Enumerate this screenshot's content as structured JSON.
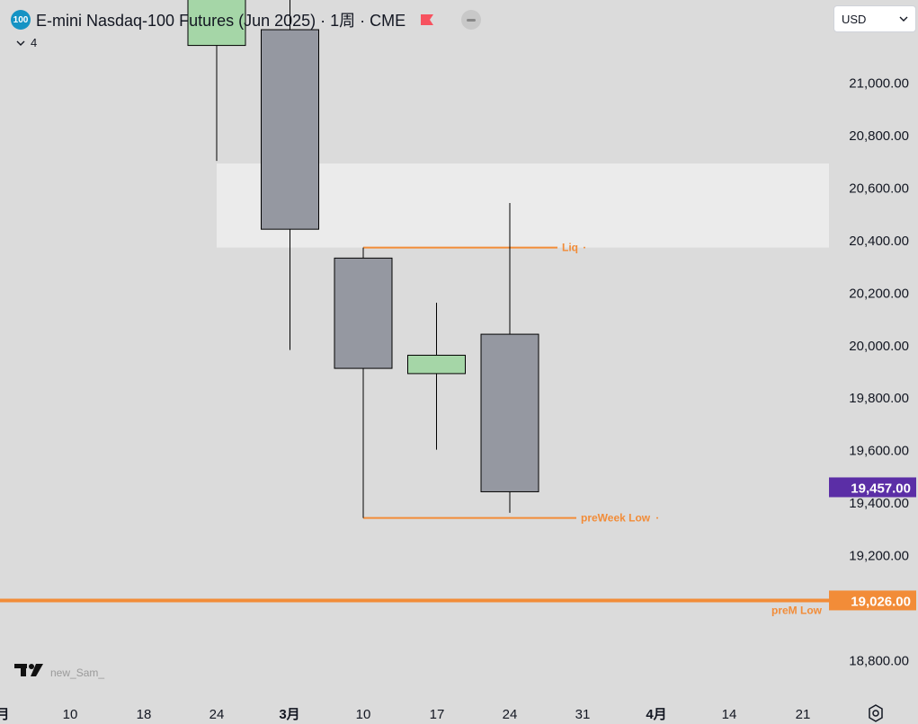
{
  "header": {
    "symbol_badge": "100",
    "title": "E-mini Nasdaq-100 Futures (Jun 2025) · 1周 · CME",
    "indicator_count": "4"
  },
  "currency": {
    "selected": "USD"
  },
  "watermark": {
    "logo": "tradingview-logo",
    "text": "new_Sam_"
  },
  "colors": {
    "background": "#dbdbdb",
    "bear_candle": "#9598a1",
    "bull_candle": "#a5d6a7",
    "level_line": "#f28c38",
    "last_price_bg": "#5b2ea6",
    "highlight_zone": "#ebebeb"
  },
  "chart_data": {
    "type": "candlestick",
    "timeframe": "1周",
    "ylim": [
      18700,
      21300
    ],
    "y_ticks": [
      {
        "value": 21000,
        "label": "21,000.00"
      },
      {
        "value": 20800,
        "label": "20,800.00"
      },
      {
        "value": 20600,
        "label": "20,600.00"
      },
      {
        "value": 20400,
        "label": "20,400.00"
      },
      {
        "value": 20200,
        "label": "20,200.00"
      },
      {
        "value": 20000,
        "label": "20,000.00"
      },
      {
        "value": 19800,
        "label": "19,800.00"
      },
      {
        "value": 19600,
        "label": "19,600.00"
      },
      {
        "value": 19400,
        "label": "19,400.00"
      },
      {
        "value": 19200,
        "label": "19,200.00"
      },
      {
        "value": 18800,
        "label": "18,800.00"
      }
    ],
    "x_ticks": [
      "月",
      "10",
      "18",
      "24",
      "3月",
      "10",
      "17",
      "24",
      "31",
      "4月",
      "14",
      "21"
    ],
    "x_ticks_bold": [
      true,
      false,
      false,
      false,
      true,
      false,
      false,
      false,
      false,
      true,
      false,
      false
    ],
    "candles": [
      {
        "date": "2025-02-24",
        "open": 21140,
        "high": 21400,
        "low": 20700,
        "close": 21400
      },
      {
        "date": "2025-03-03",
        "open": 21200,
        "high": 21350,
        "low": 19980,
        "close": 20440
      },
      {
        "date": "2025-03-10",
        "open": 20330,
        "high": 20370,
        "low": 19340,
        "close": 19910
      },
      {
        "date": "2025-03-17",
        "open": 19890,
        "high": 20160,
        "low": 19600,
        "close": 19960
      },
      {
        "date": "2025-03-24",
        "open": 20040,
        "high": 20540,
        "low": 19360,
        "close": 19440
      }
    ],
    "zone": {
      "from_date": "2025-02-24",
      "y_top": 20690,
      "y_bottom": 20370
    },
    "levels": [
      {
        "name": "Liq",
        "value": 20370
      },
      {
        "name": "preWeek Low",
        "value": 19340
      },
      {
        "name": "preM Low",
        "value": 19026,
        "axis_label": "19,026.00"
      }
    ],
    "last_price": {
      "value": 19457,
      "label": "19,457.00"
    }
  }
}
